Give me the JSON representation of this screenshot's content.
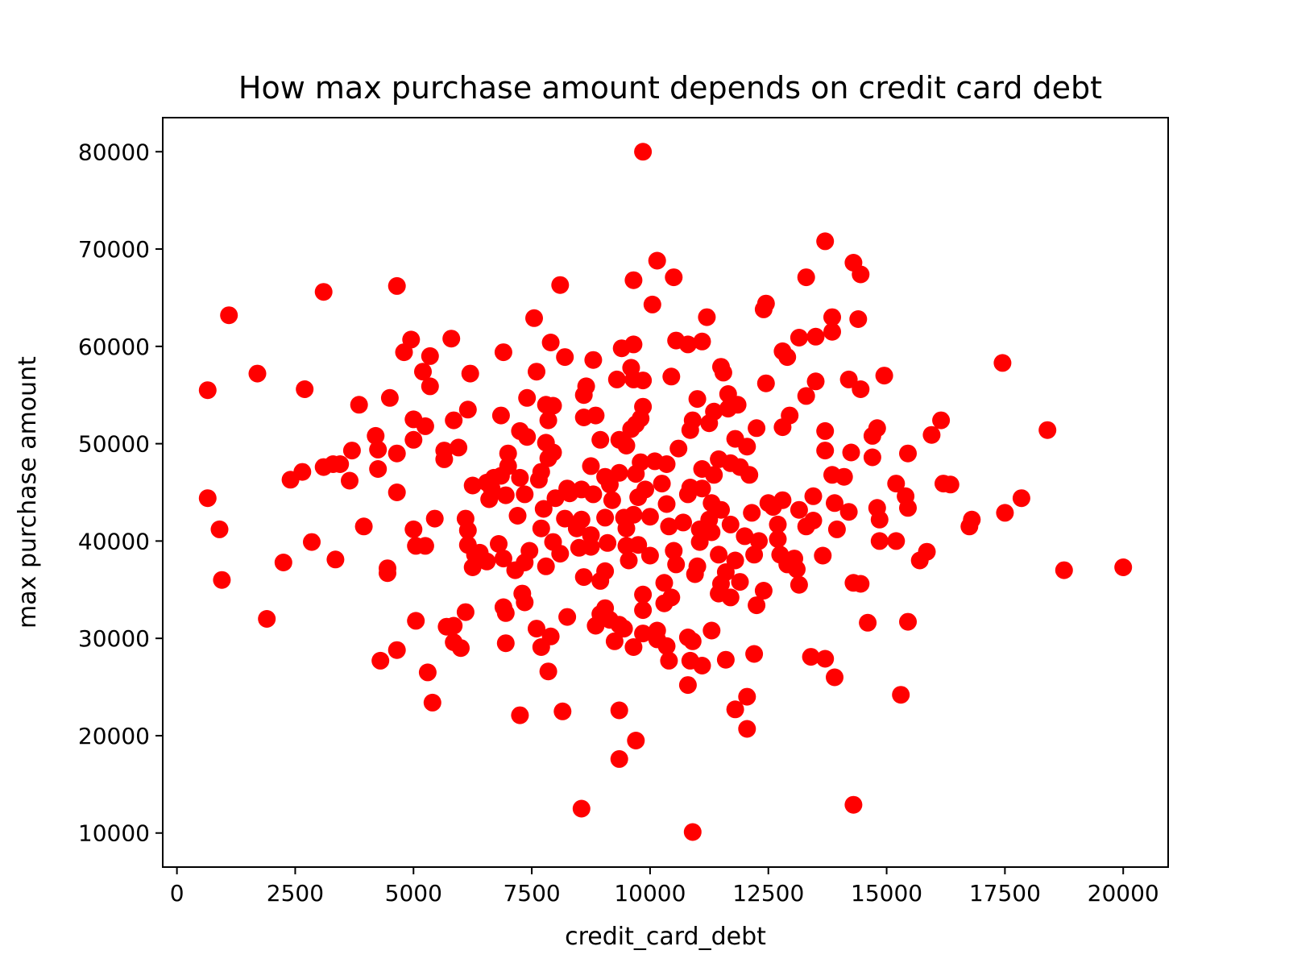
{
  "chart_data": {
    "type": "scatter",
    "title": "How max purchase amount depends on credit card debt",
    "xlabel": "credit_card_debt",
    "ylabel": "max purchase amount",
    "xlim": [
      -300,
      20950
    ],
    "ylim": [
      6500,
      83500
    ],
    "xticks": [
      0,
      2500,
      5000,
      7500,
      10000,
      12500,
      15000,
      17500,
      20000
    ],
    "yticks": [
      10000,
      20000,
      30000,
      40000,
      50000,
      60000,
      70000,
      80000
    ],
    "grid": false,
    "point_color": "#ff0000",
    "points": [
      [
        9850,
        80000
      ],
      [
        13700,
        70800
      ],
      [
        10150,
        68800
      ],
      [
        14300,
        68600
      ],
      [
        14450,
        67400
      ],
      [
        10500,
        67100
      ],
      [
        13300,
        67100
      ],
      [
        9650,
        66800
      ],
      [
        4650,
        66200
      ],
      [
        8100,
        66300
      ],
      [
        3100,
        65600
      ],
      [
        10050,
        64300
      ],
      [
        12450,
        64400
      ],
      [
        12400,
        63800
      ],
      [
        1100,
        63200
      ],
      [
        7550,
        62900
      ],
      [
        11200,
        63000
      ],
      [
        13850,
        63000
      ],
      [
        14400,
        62800
      ],
      [
        13850,
        61500
      ],
      [
        13500,
        61000
      ],
      [
        13150,
        60900
      ],
      [
        4950,
        60700
      ],
      [
        5800,
        60800
      ],
      [
        7900,
        60400
      ],
      [
        9650,
        60200
      ],
      [
        10550,
        60600
      ],
      [
        10800,
        60200
      ],
      [
        11100,
        60500
      ],
      [
        12800,
        59500
      ],
      [
        12900,
        58900
      ],
      [
        4800,
        59400
      ],
      [
        5350,
        59000
      ],
      [
        6900,
        59400
      ],
      [
        8200,
        58900
      ],
      [
        8800,
        58600
      ],
      [
        9400,
        59800
      ],
      [
        17450,
        58300
      ],
      [
        1700,
        57200
      ],
      [
        5200,
        57400
      ],
      [
        6200,
        57200
      ],
      [
        7600,
        57400
      ],
      [
        9600,
        57800
      ],
      [
        11500,
        57900
      ],
      [
        11550,
        57300
      ],
      [
        14950,
        57000
      ],
      [
        650,
        55500
      ],
      [
        2700,
        55600
      ],
      [
        4500,
        54700
      ],
      [
        5350,
        55900
      ],
      [
        8600,
        55000
      ],
      [
        8650,
        55900
      ],
      [
        9300,
        56600
      ],
      [
        9650,
        56600
      ],
      [
        9850,
        56500
      ],
      [
        10450,
        56900
      ],
      [
        12450,
        56200
      ],
      [
        13500,
        56400
      ],
      [
        14200,
        56600
      ],
      [
        14450,
        55600
      ],
      [
        11650,
        55100
      ],
      [
        3850,
        54000
      ],
      [
        6150,
        53500
      ],
      [
        7400,
        54700
      ],
      [
        7800,
        54000
      ],
      [
        7950,
        53900
      ],
      [
        8850,
        52900
      ],
      [
        8600,
        52700
      ],
      [
        9850,
        53800
      ],
      [
        9800,
        52600
      ],
      [
        11000,
        54600
      ],
      [
        11350,
        53300
      ],
      [
        11650,
        53600
      ],
      [
        11850,
        54000
      ],
      [
        12950,
        52900
      ],
      [
        13300,
        54900
      ],
      [
        5000,
        52500
      ],
      [
        5250,
        51800
      ],
      [
        5850,
        52400
      ],
      [
        6850,
        52900
      ],
      [
        7250,
        51300
      ],
      [
        7400,
        50700
      ],
      [
        7850,
        52400
      ],
      [
        7800,
        50100
      ],
      [
        9350,
        50400
      ],
      [
        9600,
        51500
      ],
      [
        9700,
        52000
      ],
      [
        10850,
        51400
      ],
      [
        10900,
        52400
      ],
      [
        11250,
        52100
      ],
      [
        12250,
        51600
      ],
      [
        12800,
        51700
      ],
      [
        13700,
        51300
      ],
      [
        14800,
        51600
      ],
      [
        14700,
        50800
      ],
      [
        15950,
        50900
      ],
      [
        16150,
        52400
      ],
      [
        18400,
        51400
      ],
      [
        4200,
        50800
      ],
      [
        5000,
        50400
      ],
      [
        3700,
        49300
      ],
      [
        4250,
        49400
      ],
      [
        4650,
        49000
      ],
      [
        5650,
        49300
      ],
      [
        5950,
        49600
      ],
      [
        7000,
        49000
      ],
      [
        7950,
        49100
      ],
      [
        8950,
        50400
      ],
      [
        9500,
        49800
      ],
      [
        10100,
        48200
      ],
      [
        10600,
        49500
      ],
      [
        11450,
        48400
      ],
      [
        11800,
        50500
      ],
      [
        12050,
        49700
      ],
      [
        13700,
        49300
      ],
      [
        14250,
        49100
      ],
      [
        14700,
        48600
      ],
      [
        15450,
        49000
      ],
      [
        3100,
        47600
      ],
      [
        3300,
        47900
      ],
      [
        3450,
        47900
      ],
      [
        2650,
        47100
      ],
      [
        2400,
        46300
      ],
      [
        3650,
        46200
      ],
      [
        4250,
        47400
      ],
      [
        5650,
        48400
      ],
      [
        6550,
        46000
      ],
      [
        6700,
        46500
      ],
      [
        6850,
        46700
      ],
      [
        7000,
        47700
      ],
      [
        7250,
        46500
      ],
      [
        7700,
        47100
      ],
      [
        7850,
        48500
      ],
      [
        8750,
        47700
      ],
      [
        9050,
        46600
      ],
      [
        9350,
        47000
      ],
      [
        9700,
        46900
      ],
      [
        9800,
        48100
      ],
      [
        10350,
        47900
      ],
      [
        11100,
        47400
      ],
      [
        11350,
        46800
      ],
      [
        11700,
        48000
      ],
      [
        11900,
        47600
      ],
      [
        12100,
        46800
      ],
      [
        13850,
        46800
      ],
      [
        14100,
        46600
      ],
      [
        6250,
        45700
      ],
      [
        6650,
        45400
      ],
      [
        7650,
        46300
      ],
      [
        8250,
        45400
      ],
      [
        8550,
        45300
      ],
      [
        9150,
        45800
      ],
      [
        9900,
        45300
      ],
      [
        10250,
        45900
      ],
      [
        10850,
        45500
      ],
      [
        11100,
        45400
      ],
      [
        12500,
        43900
      ],
      [
        13450,
        44600
      ],
      [
        13900,
        43900
      ],
      [
        15200,
        45900
      ],
      [
        15400,
        44600
      ],
      [
        16200,
        45900
      ],
      [
        16350,
        45800
      ],
      [
        17850,
        44400
      ],
      [
        650,
        44400
      ],
      [
        4650,
        45000
      ],
      [
        6600,
        44300
      ],
      [
        6950,
        44700
      ],
      [
        7350,
        44800
      ],
      [
        7750,
        43300
      ],
      [
        8000,
        44400
      ],
      [
        8300,
        44900
      ],
      [
        8800,
        44800
      ],
      [
        9200,
        44200
      ],
      [
        9750,
        44500
      ],
      [
        10350,
        43800
      ],
      [
        10800,
        44800
      ],
      [
        11300,
        43900
      ],
      [
        11500,
        43200
      ],
      [
        12600,
        43500
      ],
      [
        12800,
        44200
      ],
      [
        13150,
        43200
      ],
      [
        14200,
        43000
      ],
      [
        14800,
        43400
      ],
      [
        15450,
        43400
      ],
      [
        17500,
        42900
      ],
      [
        5450,
        42300
      ],
      [
        6100,
        42300
      ],
      [
        7200,
        42600
      ],
      [
        8200,
        42300
      ],
      [
        8550,
        42200
      ],
      [
        9050,
        42400
      ],
      [
        9450,
        42400
      ],
      [
        9650,
        42700
      ],
      [
        10000,
        42500
      ],
      [
        10700,
        41900
      ],
      [
        11250,
        42200
      ],
      [
        11700,
        41700
      ],
      [
        12150,
        42900
      ],
      [
        12700,
        41700
      ],
      [
        13300,
        41500
      ],
      [
        13450,
        42100
      ],
      [
        13950,
        41200
      ],
      [
        14850,
        42200
      ],
      [
        16750,
        41500
      ],
      [
        16800,
        42200
      ],
      [
        900,
        41200
      ],
      [
        3950,
        41500
      ],
      [
        5000,
        41200
      ],
      [
        6150,
        41100
      ],
      [
        7700,
        41300
      ],
      [
        8450,
        41300
      ],
      [
        8750,
        40600
      ],
      [
        9500,
        41300
      ],
      [
        10400,
        41500
      ],
      [
        11050,
        41200
      ],
      [
        11300,
        40900
      ],
      [
        12000,
        40500
      ],
      [
        12300,
        40000
      ],
      [
        12700,
        40200
      ],
      [
        14850,
        40000
      ],
      [
        15200,
        40000
      ],
      [
        2850,
        39900
      ],
      [
        5050,
        39500
      ],
      [
        5250,
        39500
      ],
      [
        6150,
        39600
      ],
      [
        6300,
        38600
      ],
      [
        6400,
        38800
      ],
      [
        6800,
        39700
      ],
      [
        7450,
        39000
      ],
      [
        7950,
        39900
      ],
      [
        8500,
        39300
      ],
      [
        8750,
        39400
      ],
      [
        9100,
        39800
      ],
      [
        9500,
        39500
      ],
      [
        9750,
        39600
      ],
      [
        10000,
        38500
      ],
      [
        10500,
        39000
      ],
      [
        11050,
        39900
      ],
      [
        11450,
        38600
      ],
      [
        11800,
        38000
      ],
      [
        12200,
        38600
      ],
      [
        12750,
        38600
      ],
      [
        13050,
        38200
      ],
      [
        13650,
        38500
      ],
      [
        15700,
        38000
      ],
      [
        15850,
        38900
      ],
      [
        2250,
        37800
      ],
      [
        3350,
        38100
      ],
      [
        4450,
        37200
      ],
      [
        6250,
        37300
      ],
      [
        6550,
        37900
      ],
      [
        6900,
        38200
      ],
      [
        7150,
        37000
      ],
      [
        7350,
        37800
      ],
      [
        7800,
        37400
      ],
      [
        8100,
        38700
      ],
      [
        9050,
        36900
      ],
      [
        9550,
        38000
      ],
      [
        10550,
        37600
      ],
      [
        11000,
        37400
      ],
      [
        11600,
        36800
      ],
      [
        12900,
        37600
      ],
      [
        13100,
        37100
      ],
      [
        18750,
        37000
      ],
      [
        20000,
        37300
      ],
      [
        950,
        36000
      ],
      [
        4450,
        36700
      ],
      [
        8600,
        36300
      ],
      [
        8950,
        35900
      ],
      [
        10300,
        35700
      ],
      [
        10950,
        36600
      ],
      [
        11500,
        35600
      ],
      [
        11900,
        35800
      ],
      [
        13150,
        35500
      ],
      [
        14300,
        35700
      ],
      [
        14450,
        35600
      ],
      [
        7300,
        34600
      ],
      [
        7350,
        33700
      ],
      [
        9850,
        34500
      ],
      [
        10450,
        34200
      ],
      [
        11450,
        34600
      ],
      [
        11700,
        34200
      ],
      [
        12400,
        34900
      ],
      [
        12250,
        33400
      ],
      [
        6100,
        32700
      ],
      [
        6900,
        33200
      ],
      [
        6950,
        32600
      ],
      [
        8250,
        32200
      ],
      [
        8950,
        32500
      ],
      [
        9050,
        33100
      ],
      [
        9350,
        31400
      ],
      [
        9450,
        31000
      ],
      [
        9850,
        32900
      ],
      [
        10300,
        33600
      ],
      [
        5050,
        31800
      ],
      [
        5700,
        31200
      ],
      [
        5850,
        31300
      ],
      [
        7600,
        31000
      ],
      [
        8850,
        31300
      ],
      [
        9150,
        31900
      ],
      [
        10150,
        30800
      ],
      [
        11300,
        30800
      ],
      [
        14600,
        31600
      ],
      [
        15450,
        31700
      ],
      [
        1900,
        32000
      ],
      [
        5850,
        29600
      ],
      [
        6000,
        29000
      ],
      [
        6950,
        29500
      ],
      [
        7700,
        29100
      ],
      [
        7900,
        30200
      ],
      [
        9250,
        29700
      ],
      [
        9650,
        29100
      ],
      [
        9850,
        30500
      ],
      [
        10150,
        29900
      ],
      [
        10350,
        29200
      ],
      [
        10800,
        30100
      ],
      [
        10900,
        29700
      ],
      [
        4650,
        28800
      ],
      [
        4300,
        27700
      ],
      [
        10400,
        27700
      ],
      [
        10850,
        27700
      ],
      [
        11100,
        27200
      ],
      [
        11600,
        27800
      ],
      [
        12200,
        28400
      ],
      [
        13400,
        28100
      ],
      [
        13700,
        27900
      ],
      [
        13900,
        26000
      ],
      [
        5300,
        26500
      ],
      [
        7850,
        26600
      ],
      [
        10800,
        25200
      ],
      [
        5400,
        23400
      ],
      [
        11800,
        22700
      ],
      [
        12050,
        24000
      ],
      [
        15300,
        24200
      ],
      [
        7250,
        22100
      ],
      [
        8150,
        22500
      ],
      [
        9350,
        22600
      ],
      [
        9700,
        19500
      ],
      [
        12050,
        20700
      ],
      [
        9350,
        17600
      ],
      [
        8550,
        12500
      ],
      [
        14300,
        12900
      ],
      [
        10900,
        10100
      ]
    ]
  }
}
